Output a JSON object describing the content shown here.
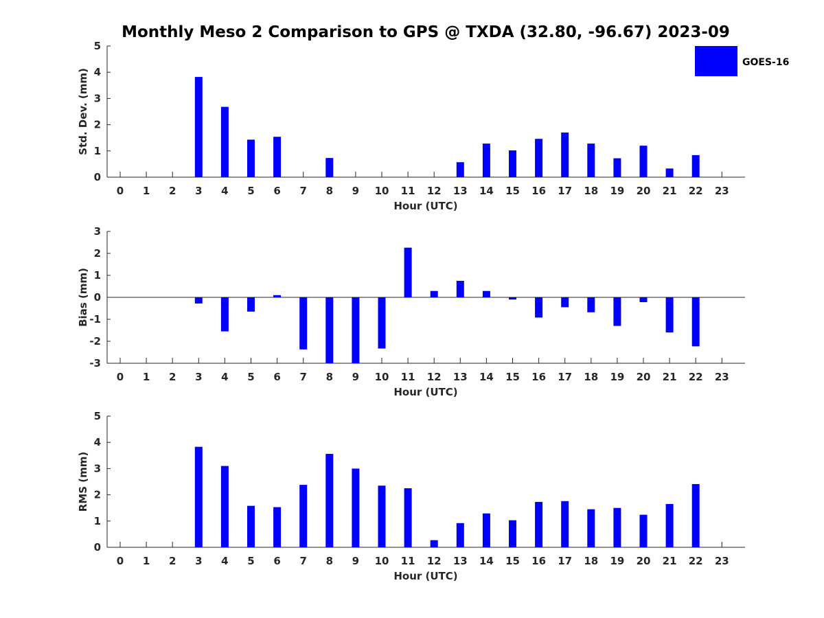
{
  "figure": {
    "title": "Monthly Meso 2 Comparison to GPS @ TXDA (32.80, -96.67) 2023-09",
    "legend": {
      "label": "GOES-16",
      "color": "#0000ff"
    }
  },
  "chart_data": [
    {
      "type": "bar",
      "name": "std-dev",
      "ylabel": "Std. Dev. (mm)",
      "xlabel": "Hour (UTC)",
      "ylim": [
        0,
        5
      ],
      "yticks": [
        0,
        1,
        2,
        3,
        4,
        5
      ],
      "categories": [
        "0",
        "1",
        "2",
        "3",
        "4",
        "5",
        "6",
        "7",
        "8",
        "9",
        "10",
        "11",
        "12",
        "13",
        "14",
        "15",
        "16",
        "17",
        "18",
        "19",
        "20",
        "21",
        "22",
        "23"
      ],
      "series": [
        {
          "name": "GOES-16",
          "color": "#0000ff",
          "values": [
            null,
            null,
            null,
            3.82,
            2.68,
            1.43,
            1.54,
            null,
            0.73,
            null,
            null,
            null,
            null,
            0.57,
            1.28,
            1.02,
            1.46,
            1.7,
            1.28,
            0.72,
            1.2,
            0.33,
            0.84,
            null
          ]
        }
      ]
    },
    {
      "type": "bar",
      "name": "bias",
      "ylabel": "Bias (mm)",
      "xlabel": "Hour (UTC)",
      "ylim": [
        -3,
        3
      ],
      "yticks": [
        -3,
        -2,
        -1,
        0,
        1,
        2,
        3
      ],
      "zero_line": true,
      "categories": [
        "0",
        "1",
        "2",
        "3",
        "4",
        "5",
        "6",
        "7",
        "8",
        "9",
        "10",
        "11",
        "12",
        "13",
        "14",
        "15",
        "16",
        "17",
        "18",
        "19",
        "20",
        "21",
        "22",
        "23"
      ],
      "series": [
        {
          "name": "GOES-16",
          "color": "#0000ff",
          "values": [
            null,
            null,
            null,
            -0.28,
            -1.55,
            -0.65,
            0.1,
            -2.37,
            -3.0,
            -3.0,
            -2.33,
            2.26,
            0.29,
            0.75,
            0.29,
            -0.1,
            -0.92,
            -0.45,
            -0.68,
            -1.3,
            -0.22,
            -1.6,
            -2.23,
            null
          ]
        }
      ]
    },
    {
      "type": "bar",
      "name": "rms",
      "ylabel": "RMS (mm)",
      "xlabel": "Hour (UTC)",
      "ylim": [
        0,
        5
      ],
      "yticks": [
        0,
        1,
        2,
        3,
        4,
        5
      ],
      "categories": [
        "0",
        "1",
        "2",
        "3",
        "4",
        "5",
        "6",
        "7",
        "8",
        "9",
        "10",
        "11",
        "12",
        "13",
        "14",
        "15",
        "16",
        "17",
        "18",
        "19",
        "20",
        "21",
        "22",
        "23"
      ],
      "series": [
        {
          "name": "GOES-16",
          "color": "#0000ff",
          "values": [
            null,
            null,
            null,
            3.83,
            3.1,
            1.58,
            1.53,
            2.38,
            3.56,
            3.0,
            2.35,
            2.25,
            0.27,
            0.92,
            1.29,
            1.03,
            1.73,
            1.76,
            1.45,
            1.5,
            1.24,
            1.65,
            2.41,
            null
          ]
        }
      ]
    }
  ]
}
